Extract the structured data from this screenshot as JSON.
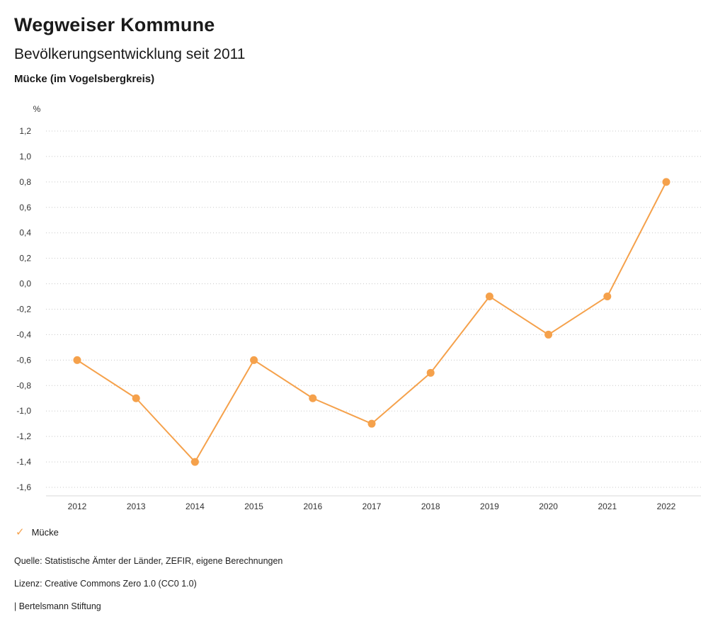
{
  "header": {
    "title": "Wegweiser Kommune",
    "subtitle": "Bevölkerungsentwicklung seit 2011",
    "region": "Mücke (im Vogelsbergkreis)"
  },
  "chart_data": {
    "type": "line",
    "title": "Bevölkerungsentwicklung seit 2011",
    "ylabel": "%",
    "categories": [
      "2012",
      "2013",
      "2014",
      "2015",
      "2016",
      "2017",
      "2018",
      "2019",
      "2020",
      "2021",
      "2022"
    ],
    "series": [
      {
        "name": "Mücke",
        "color": "#F5A14B",
        "values": [
          -0.6,
          -0.9,
          -1.4,
          -0.6,
          -0.9,
          -1.1,
          -0.7,
          -0.1,
          -0.4,
          -0.1,
          0.8
        ]
      }
    ],
    "ylim": [
      -1.6,
      1.2
    ],
    "ytick_step": 0.2,
    "grid": "dotted-horizontal",
    "gridline_color": "#c8c8c8",
    "axis_color": "#d9d9d9",
    "tick_label_color": "#333333",
    "legend_position": "bottom-left",
    "decimal_separator": ","
  },
  "legend": {
    "items": [
      {
        "label": "Mücke",
        "color": "#F5A14B",
        "marker": "✓"
      }
    ]
  },
  "footer": {
    "source": "Quelle: Statistische Ämter der Länder, ZEFIR, eigene Berechnungen",
    "license": "Lizenz: Creative Commons Zero 1.0 (CC0 1.0)",
    "attribution": "| Bertelsmann Stiftung"
  }
}
